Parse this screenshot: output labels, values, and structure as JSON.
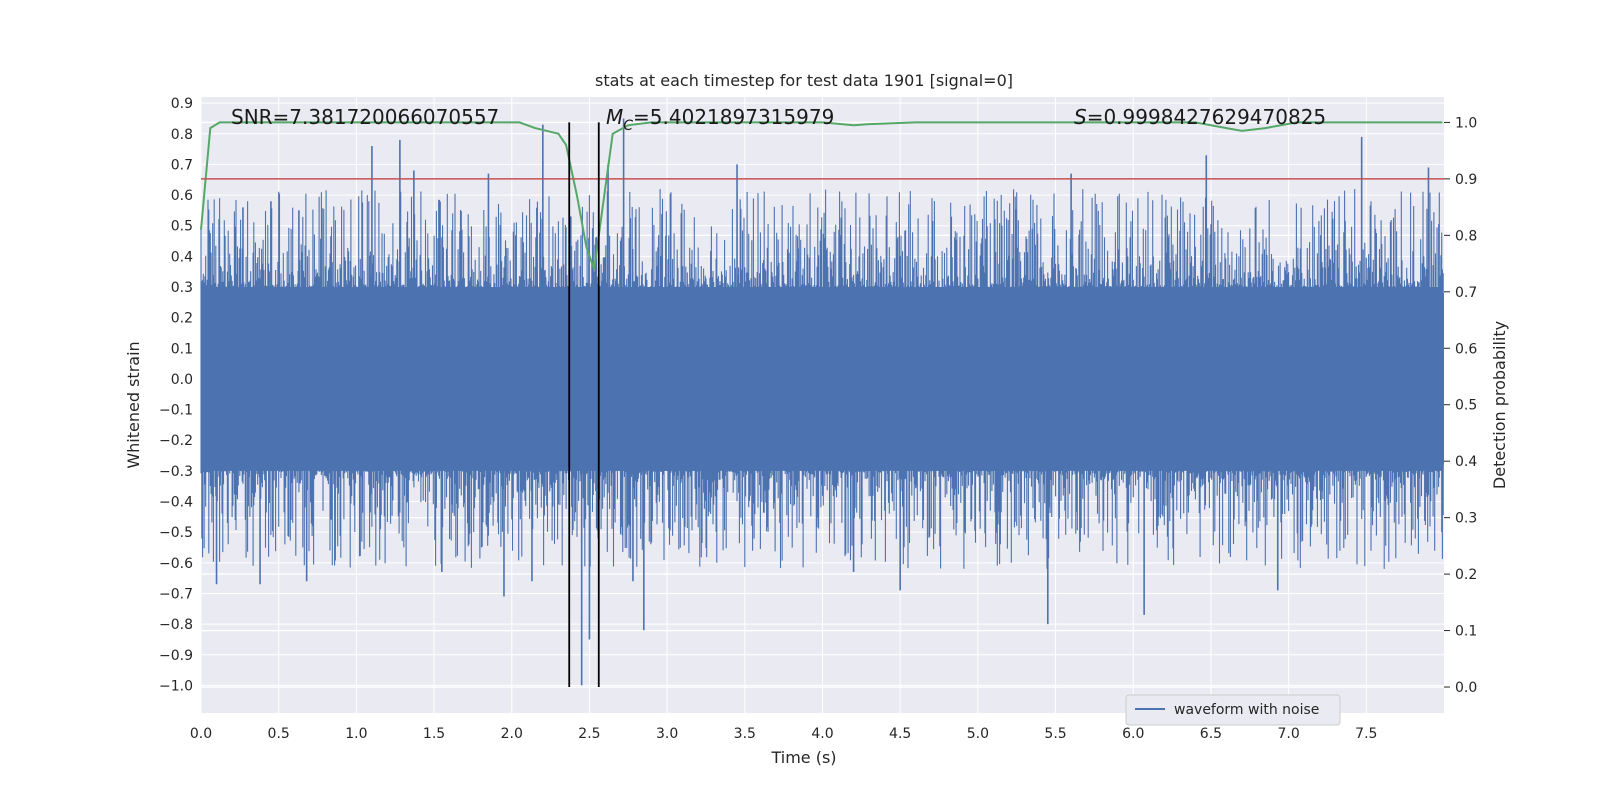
{
  "chart_data": {
    "type": "line",
    "title": "stats at each timestep for test data 1901 [signal=0]",
    "xlabel": "Time (s)",
    "ylabel": "Whitened strain",
    "y2label": "Detection probability",
    "xlim": [
      0.0,
      8.0
    ],
    "ylim": [
      -1.09,
      0.92
    ],
    "y2lim": [
      -0.046,
      1.045
    ],
    "x_ticks": [
      "0.0",
      "0.5",
      "1.0",
      "1.5",
      "2.0",
      "2.5",
      "3.0",
      "3.5",
      "4.0",
      "4.5",
      "5.0",
      "5.5",
      "6.0",
      "6.5",
      "7.0",
      "7.5"
    ],
    "y_ticks": [
      "0.9",
      "0.8",
      "0.7",
      "0.6",
      "0.5",
      "0.4",
      "0.3",
      "0.2",
      "0.1",
      "0.0",
      "−0.1",
      "−0.2",
      "−0.3",
      "−0.4",
      "−0.5",
      "−0.6",
      "−0.7",
      "−0.8",
      "−0.9",
      "−1.0"
    ],
    "y2_ticks": [
      "1.0",
      "0.9",
      "0.8",
      "0.7",
      "0.6",
      "0.5",
      "0.4",
      "0.3",
      "0.2",
      "0.1",
      "0.0"
    ],
    "grid": true,
    "legend_position": "lower-right",
    "annotations": {
      "snr": "SNR=7.381720066070557",
      "mc_symbol": "M",
      "mc_sub": "C",
      "mc_value": "=5.4021897315979",
      "s_symbol": "S",
      "s_value": "=0.9998427629470825"
    },
    "series": [
      {
        "name": "waveform with noise",
        "axis": "left",
        "color": "#4c72b0",
        "style": "dense noise",
        "time_range": [
          0.0,
          8.0
        ],
        "typical_amplitude": 0.3,
        "spikes": [
          {
            "x": 0.05,
            "y": -0.3
          },
          {
            "x": 0.1,
            "y": -0.67
          },
          {
            "x": 0.27,
            "y": 0.56
          },
          {
            "x": 0.38,
            "y": -0.67
          },
          {
            "x": 0.45,
            "y": 0.58
          },
          {
            "x": 0.63,
            "y": 0.55
          },
          {
            "x": 0.68,
            "y": -0.66
          },
          {
            "x": 1.1,
            "y": 0.76
          },
          {
            "x": 1.28,
            "y": 0.78
          },
          {
            "x": 1.37,
            "y": 0.68
          },
          {
            "x": 1.55,
            "y": -0.63
          },
          {
            "x": 1.85,
            "y": 0.67
          },
          {
            "x": 1.95,
            "y": -0.71
          },
          {
            "x": 2.13,
            "y": -0.66
          },
          {
            "x": 2.2,
            "y": 0.83
          },
          {
            "x": 2.38,
            "y": 0.53
          },
          {
            "x": 2.45,
            "y": -1.0
          },
          {
            "x": 2.5,
            "y": -0.85
          },
          {
            "x": 2.62,
            "y": 0.7
          },
          {
            "x": 2.72,
            "y": 0.85
          },
          {
            "x": 2.78,
            "y": -0.66
          },
          {
            "x": 2.85,
            "y": -0.82
          },
          {
            "x": 3.45,
            "y": 0.7
          },
          {
            "x": 4.2,
            "y": -0.63
          },
          {
            "x": 4.5,
            "y": -0.69
          },
          {
            "x": 5.45,
            "y": -0.8
          },
          {
            "x": 5.6,
            "y": 0.67
          },
          {
            "x": 6.07,
            "y": -0.77
          },
          {
            "x": 6.47,
            "y": 0.73
          },
          {
            "x": 6.93,
            "y": -0.69
          },
          {
            "x": 7.47,
            "y": 0.79
          },
          {
            "x": 7.9,
            "y": 0.69
          }
        ]
      },
      {
        "name": "",
        "axis": "right",
        "color": "#55a868",
        "x": [
          0.0,
          0.06,
          0.12,
          0.5,
          1.0,
          1.5,
          1.9,
          2.05,
          2.15,
          2.3,
          2.35,
          2.42,
          2.48,
          2.53,
          2.58,
          2.65,
          2.75,
          2.9,
          3.2,
          3.6,
          4.0,
          4.2,
          4.3,
          4.6,
          5.0,
          5.5,
          6.0,
          6.4,
          6.6,
          6.7,
          6.85,
          7.05,
          7.2,
          7.5,
          7.99
        ],
        "y": [
          0.81,
          0.99,
          1.0,
          1.0,
          1.0,
          1.0,
          1.0,
          1.0,
          0.99,
          0.98,
          0.96,
          0.87,
          0.78,
          0.74,
          0.84,
          0.98,
          0.995,
          1.0,
          1.0,
          1.0,
          1.0,
          0.995,
          0.997,
          1.0,
          1.0,
          1.0,
          1.0,
          1.0,
          0.99,
          0.985,
          0.99,
          1.0,
          1.0,
          1.0,
          1.0
        ]
      }
    ],
    "threshold": {
      "axis": "right",
      "y": 0.9,
      "color": "#c44e52"
    },
    "vlines": {
      "x": [
        2.37,
        2.56
      ],
      "y2_range": [
        0.0,
        1.0
      ],
      "color": "#000000"
    }
  }
}
